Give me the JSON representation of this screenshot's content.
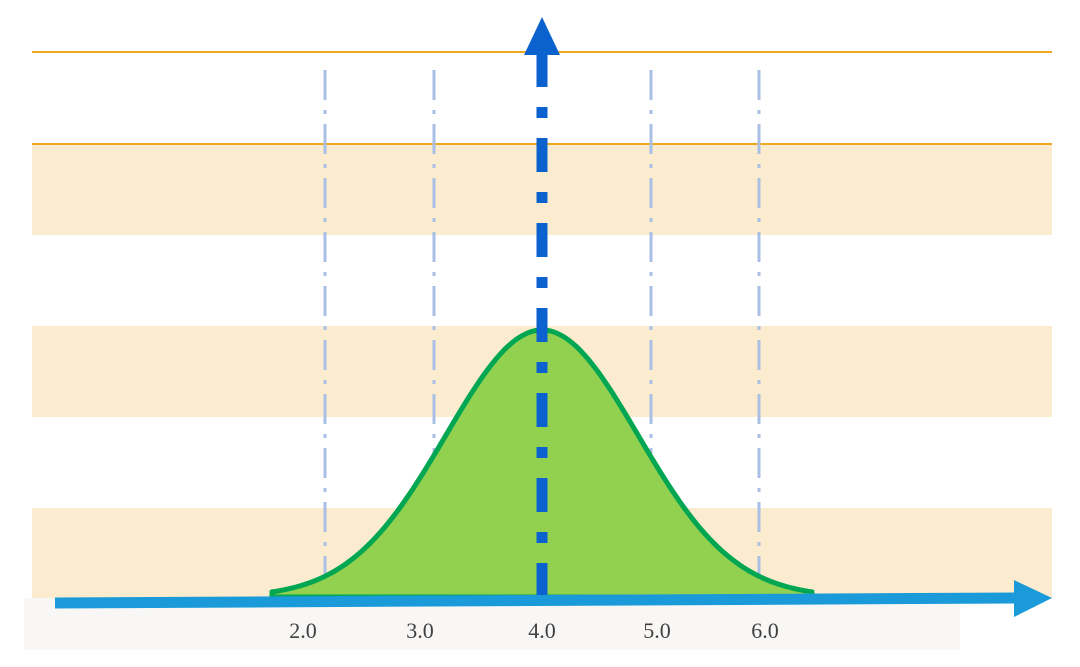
{
  "axis": {
    "tick_labels": [
      "2.0",
      "3.0",
      "4.0",
      "5.0",
      "6.0"
    ]
  }
}
